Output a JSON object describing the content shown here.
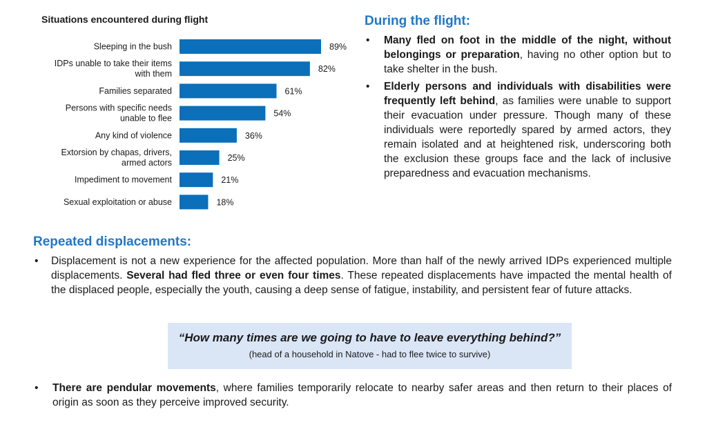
{
  "chart_data": {
    "type": "bar",
    "orientation": "horizontal",
    "title": "Situations encountered during flight",
    "categories": [
      "Sleeping in the bush",
      "IDPs unable to take their items with them",
      "Families separated",
      "Persons with specific needs unable to flee",
      "Any kind of violence",
      "Extorsion by chapas, drivers, armed actors",
      "Impediment to movement",
      "Sexual exploitation or abuse"
    ],
    "category_lines": [
      [
        "Sleeping in the bush"
      ],
      [
        "IDPs unable to take their items",
        "with them"
      ],
      [
        "Families separated"
      ],
      [
        "Persons with specific needs",
        "unable to flee"
      ],
      [
        "Any kind of violence"
      ],
      [
        "Extorsion by chapas, drivers,",
        "armed actors"
      ],
      [
        "Impediment to movement"
      ],
      [
        "Sexual exploitation or abuse"
      ]
    ],
    "values": [
      89,
      82,
      61,
      54,
      36,
      25,
      21,
      18
    ],
    "value_labels": [
      "89%",
      "82%",
      "61%",
      "54%",
      "36%",
      "25%",
      "21%",
      "18%"
    ],
    "xlim": [
      0,
      100
    ],
    "grid": false,
    "legend": "none",
    "bar_color": "#0b6fba"
  },
  "flight": {
    "heading": "During the flight:",
    "bullets": [
      {
        "bold": "Many fled on foot in the middle of the night, without belongings or preparation",
        "text": ", having no other option but to take shelter in the bush."
      },
      {
        "bold": "Elderly persons and individuals with disabilities were frequently left behind",
        "text": ", as families were unable to support their evacuation under pressure. Though many of these individuals were reportedly spared by armed actors, they remain isolated and at heightened risk, underscoring both the exclusion these groups face and the lack of inclusive preparedness and evacuation mechanisms."
      }
    ]
  },
  "repeated": {
    "heading": "Repeated displacements:",
    "bullet": {
      "pre": "Displacement is not a new experience for the affected population. More than half of the newly arrived IDPs experienced multiple displacements. ",
      "bold": "Several had fled three or even four times",
      "post": ". These repeated displacements have impacted the mental health of the displaced people, especially the youth, causing a deep sense of fatigue, instability, and persistent fear of future attacks."
    }
  },
  "quote": {
    "text": "“How many times are we going to have to leave everything behind?”",
    "source": "(head of a household in Natove - had to flee twice to survive)"
  },
  "pendular": {
    "bold": "There are pendular movements",
    "text": ", where families temporarily relocate to nearby safer areas and then return to their places of origin as soon as they perceive improved security."
  }
}
